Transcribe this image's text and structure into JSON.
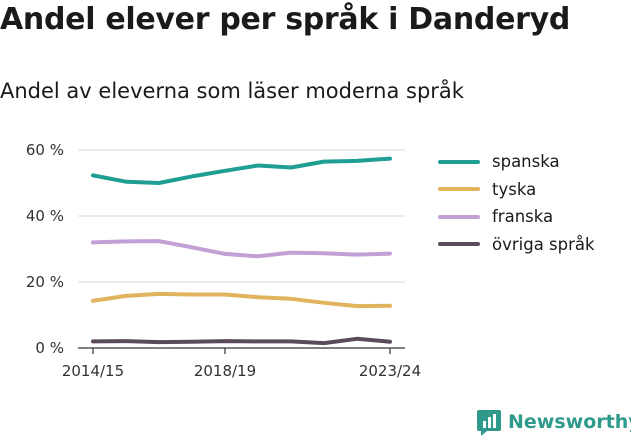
{
  "title": "Andel elever per språk i Danderyd",
  "subtitle": "Andel av eleverna som läser moderna språk",
  "brand": {
    "name": "Newsworthy",
    "icon": "newsworthy-logo-icon",
    "color": "#2f9a8c"
  },
  "chart_data": {
    "type": "line",
    "title": "Andel elever per språk i Danderyd",
    "subtitle": "Andel av eleverna som läser moderna språk",
    "x": [
      "2014/15",
      "2015/16",
      "2016/17",
      "2017/18",
      "2018/19",
      "2019/20",
      "2020/21",
      "2021/22",
      "2022/23",
      "2023/24"
    ],
    "x_tick_labels": [
      "2014/15",
      "2018/19",
      "2023/24"
    ],
    "y_ticks": [
      0,
      20,
      40,
      60
    ],
    "y_tick_labels": [
      "0 %",
      "20 %",
      "40 %",
      "60 %"
    ],
    "ylim": [
      0,
      62
    ],
    "grid": true,
    "legend_position": "right",
    "series": [
      {
        "name": "spanska",
        "color": "#1f9e93",
        "values": [
          52.3,
          50.4,
          50.0,
          52.0,
          53.7,
          55.3,
          54.7,
          56.5,
          56.7,
          57.4
        ]
      },
      {
        "name": "tyska",
        "color": "#e0b35c",
        "values": [
          14.3,
          15.8,
          16.4,
          16.2,
          16.2,
          15.4,
          14.9,
          13.7,
          12.7,
          12.8
        ]
      },
      {
        "name": "franska",
        "color": "#c29fd4",
        "values": [
          32.0,
          32.3,
          32.4,
          30.5,
          28.5,
          27.8,
          28.9,
          28.7,
          28.3,
          28.6
        ]
      },
      {
        "name": "övriga språk",
        "color": "#5a4a5a",
        "values": [
          2.0,
          2.1,
          1.8,
          1.9,
          2.1,
          2.0,
          2.0,
          1.5,
          2.8,
          1.9
        ]
      }
    ]
  }
}
